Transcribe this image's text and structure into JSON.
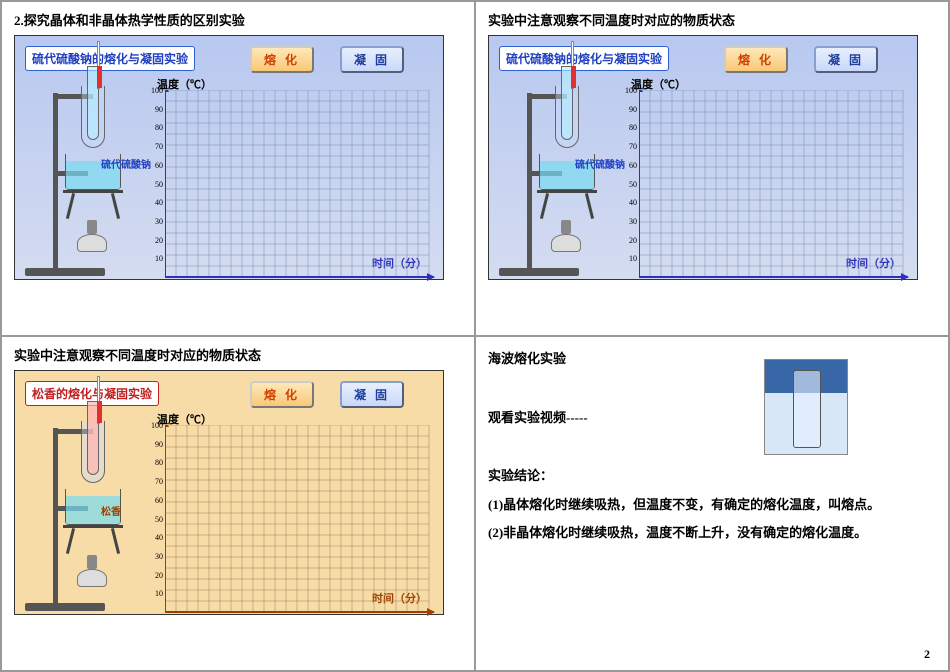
{
  "cells": {
    "tl": {
      "heading": "2.探究晶体和非晶体热学性质的区别实验"
    },
    "tr": {
      "heading": "实验中注意观察不同温度时对应的物质状态"
    },
    "bl": {
      "heading": "实验中注意观察不同温度时对应的物质状态"
    },
    "br": {
      "line1": "海波熔化实验",
      "line2": "观看实验视频-----",
      "conclusion_heading": "实验结论：",
      "c1": "(1)晶体熔化时继续吸热，但温度不变，有确定的熔化温度，叫熔点。",
      "c2": "(2)非晶体熔化时继续吸热，温度不断上升，没有确定的熔化温度。"
    }
  },
  "sim": {
    "thio": {
      "title": "硫代硫酸钠的熔化与凝固实验",
      "sample": "硫代硫酸钠"
    },
    "rosin": {
      "title": "松香的熔化与凝固实验",
      "sample": "松香"
    },
    "btn_melt": "熔 化",
    "btn_solid": "凝 固",
    "y_label": "温度（℃）",
    "x_label": "时间（分）"
  },
  "chart": {
    "grid_color": "#7090b0",
    "grid_color_orange": "#a08050",
    "axis_color": "#3030c0",
    "axis_color_orange": "#a04000",
    "cols": 24,
    "rows": 17,
    "cell": 11,
    "y_ticks": [
      "100",
      "90",
      "80",
      "70",
      "60",
      "50",
      "40",
      "30",
      "20",
      "10"
    ]
  },
  "page_number": "2"
}
